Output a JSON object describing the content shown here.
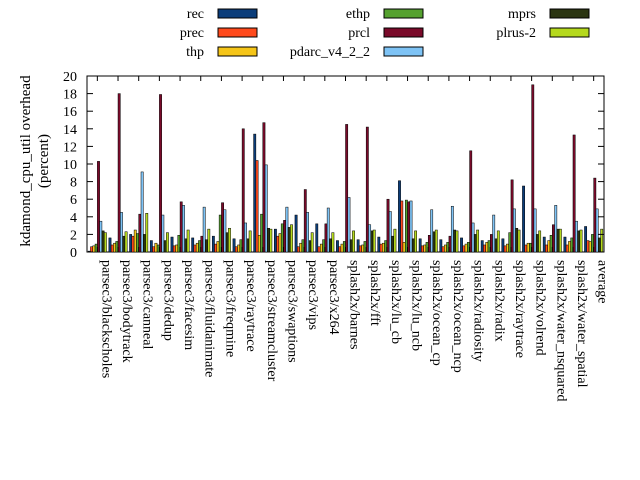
{
  "chart_data": {
    "type": "bar",
    "ylabel": "kdamond_cpu_util overhead\n(percent)",
    "ylim": [
      0,
      20
    ],
    "yticks": [
      0,
      2,
      4,
      6,
      8,
      10,
      12,
      14,
      16,
      18,
      20
    ],
    "legend_placement": "top",
    "categories": [
      "parsec3/blackscholes",
      "parsec3/bodytrack",
      "parsec3/canneal",
      "parsec3/dedup",
      "parsec3/facesim",
      "parsec3/fluidanimate",
      "parsec3/freqmine",
      "parsec3/raytrace",
      "parsec3/streamcluster",
      "parsec3/swaptions",
      "parsec3/vips",
      "parsec3/x264",
      "splash2x/barnes",
      "splash2x/fft",
      "splash2x/lu_cb",
      "splash2x/lu_ncb",
      "splash2x/ocean_cp",
      "splash2x/ocean_ncp",
      "splash2x/radiosity",
      "splash2x/radix",
      "splash2x/raytrace",
      "splash2x/volrend",
      "splash2x/water_nsquared",
      "splash2x/water_spatial",
      "average"
    ],
    "series": [
      {
        "name": "rec",
        "color": "#0b3d7a",
        "values": [
          0.1,
          1.6,
          2.0,
          1.3,
          1.7,
          1.6,
          1.8,
          1.5,
          13.4,
          2.6,
          4.2,
          3.2,
          1.3,
          1.4,
          1.7,
          8.1,
          1.5,
          1.4,
          1.6,
          1.3,
          1.5,
          7.5,
          1.7,
          1.7,
          2.9
        ]
      },
      {
        "name": "prec",
        "color": "#ff4a1c",
        "values": [
          0.6,
          0.8,
          1.8,
          0.6,
          0.7,
          0.8,
          0.9,
          0.6,
          10.4,
          1.8,
          0.6,
          0.6,
          0.6,
          0.7,
          0.9,
          5.8,
          0.7,
          0.6,
          0.7,
          0.8,
          0.7,
          0.8,
          0.8,
          0.8,
          1.3
        ]
      },
      {
        "name": "thp",
        "color": "#f5c518",
        "values": [
          0.7,
          1.0,
          2.5,
          1.0,
          0.8,
          1.0,
          1.2,
          0.8,
          1.9,
          2.1,
          1.0,
          0.9,
          0.9,
          0.8,
          1.0,
          1.1,
          0.8,
          0.8,
          0.9,
          1.1,
          0.9,
          1.0,
          1.3,
          1.2,
          1.2
        ]
      },
      {
        "name": "ethp",
        "color": "#55a12f",
        "values": [
          0.9,
          1.2,
          2.1,
          0.8,
          1.9,
          1.3,
          4.2,
          1.4,
          4.3,
          3.2,
          1.4,
          1.4,
          1.2,
          1.2,
          1.3,
          5.9,
          1.1,
          1.1,
          1.1,
          1.3,
          2.2,
          1.0,
          1.9,
          1.6,
          2.0
        ]
      },
      {
        "name": "prcl",
        "color": "#7a0a2a",
        "values": [
          10.3,
          18.0,
          4.3,
          17.9,
          5.7,
          1.8,
          5.6,
          14.0,
          14.7,
          3.6,
          7.1,
          3.2,
          14.5,
          14.2,
          6.0,
          5.7,
          1.9,
          1.8,
          11.5,
          2.0,
          8.2,
          19.0,
          3.1,
          13.3,
          8.4
        ]
      },
      {
        "name": "pdarc_v4_2_2",
        "color": "#7ec3f5",
        "values": [
          3.5,
          4.5,
          9.1,
          4.2,
          5.3,
          5.1,
          4.8,
          3.3,
          9.9,
          5.1,
          4.5,
          5.0,
          6.2,
          3.1,
          4.6,
          5.8,
          4.8,
          5.2,
          3.3,
          4.2,
          4.9,
          4.9,
          5.3,
          3.5,
          4.9
        ]
      },
      {
        "name": "mprs",
        "color": "#2b3511",
        "values": [
          2.4,
          1.8,
          2.0,
          1.3,
          1.5,
          1.4,
          2.2,
          1.5,
          2.7,
          2.8,
          1.3,
          1.5,
          1.4,
          2.4,
          1.8,
          1.5,
          2.3,
          2.5,
          2.0,
          1.5,
          2.7,
          2.0,
          2.6,
          2.4,
          1.6
        ]
      },
      {
        "name": "plrus-2",
        "color": "#b5d91d",
        "values": [
          2.2,
          2.3,
          4.4,
          2.2,
          2.5,
          2.6,
          2.7,
          2.4,
          2.6,
          3.1,
          2.2,
          2.2,
          2.4,
          2.5,
          2.6,
          2.4,
          2.5,
          2.4,
          2.5,
          2.4,
          2.5,
          2.4,
          2.6,
          2.5,
          2.6
        ]
      }
    ]
  }
}
